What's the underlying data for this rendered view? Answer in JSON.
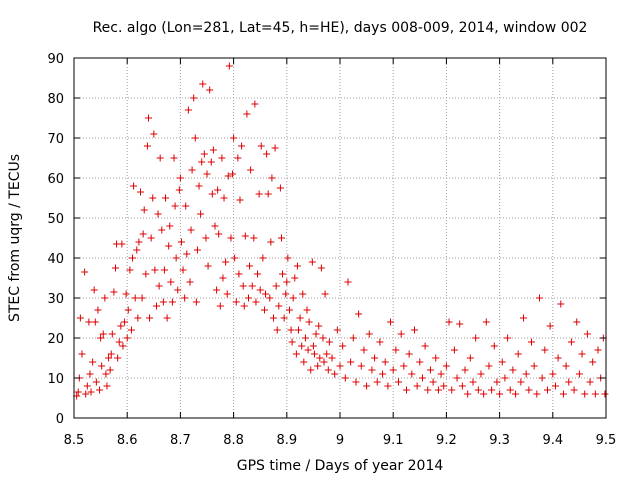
{
  "chart_data": {
    "type": "scatter",
    "title": "Rec. algo (Lon=281, Lat=45, h=HE), days 008-009, 2014, window 002",
    "xlabel": "GPS time / Days of year 2014",
    "ylabel": "STEC from uqrg / TECUs",
    "xlim": [
      8.5,
      9.5
    ],
    "ylim": [
      0,
      90
    ],
    "xticks": [
      "8.5",
      "8.6",
      "8.7",
      "8.8",
      "8.9",
      "9",
      "9.1",
      "9.2",
      "9.3",
      "9.4",
      "9.5"
    ],
    "yticks": [
      "0",
      "10",
      "20",
      "30",
      "40",
      "50",
      "60",
      "70",
      "80",
      "90"
    ],
    "grid": true,
    "marker": "+",
    "color": "#dd0000",
    "points": [
      [
        8.505,
        5.5
      ],
      [
        8.508,
        6.5
      ],
      [
        8.51,
        10
      ],
      [
        8.512,
        25
      ],
      [
        8.515,
        16
      ],
      [
        8.52,
        36.5
      ],
      [
        8.522,
        6
      ],
      [
        8.525,
        8
      ],
      [
        8.528,
        24
      ],
      [
        8.53,
        11
      ],
      [
        8.532,
        6.5
      ],
      [
        8.535,
        14
      ],
      [
        8.538,
        32
      ],
      [
        8.54,
        24
      ],
      [
        8.542,
        9
      ],
      [
        8.545,
        27
      ],
      [
        8.548,
        7
      ],
      [
        8.55,
        20
      ],
      [
        8.552,
        13
      ],
      [
        8.555,
        21
      ],
      [
        8.558,
        30
      ],
      [
        8.56,
        11
      ],
      [
        8.562,
        8
      ],
      [
        8.565,
        15
      ],
      [
        8.568,
        12
      ],
      [
        8.57,
        16
      ],
      [
        8.572,
        21
      ],
      [
        8.575,
        31.5
      ],
      [
        8.578,
        37.5
      ],
      [
        8.58,
        43.5
      ],
      [
        8.582,
        15
      ],
      [
        8.585,
        19
      ],
      [
        8.588,
        23
      ],
      [
        8.59,
        43.5
      ],
      [
        8.592,
        18
      ],
      [
        8.595,
        24
      ],
      [
        8.598,
        31
      ],
      [
        8.6,
        20
      ],
      [
        8.602,
        27
      ],
      [
        8.605,
        37
      ],
      [
        8.608,
        22
      ],
      [
        8.61,
        40
      ],
      [
        8.612,
        58
      ],
      [
        8.615,
        30
      ],
      [
        8.618,
        42
      ],
      [
        8.62,
        25
      ],
      [
        8.622,
        44
      ],
      [
        8.625,
        56.5
      ],
      [
        8.628,
        30
      ],
      [
        8.63,
        46
      ],
      [
        8.632,
        52
      ],
      [
        8.635,
        36
      ],
      [
        8.638,
        68
      ],
      [
        8.64,
        75
      ],
      [
        8.642,
        25
      ],
      [
        8.645,
        45
      ],
      [
        8.648,
        55
      ],
      [
        8.65,
        71
      ],
      [
        8.652,
        37
      ],
      [
        8.655,
        28
      ],
      [
        8.658,
        51
      ],
      [
        8.66,
        33
      ],
      [
        8.662,
        65
      ],
      [
        8.665,
        47
      ],
      [
        8.668,
        29
      ],
      [
        8.67,
        37
      ],
      [
        8.672,
        55
      ],
      [
        8.675,
        25
      ],
      [
        8.678,
        43
      ],
      [
        8.68,
        48
      ],
      [
        8.682,
        34
      ],
      [
        8.685,
        29
      ],
      [
        8.688,
        65
      ],
      [
        8.69,
        53
      ],
      [
        8.692,
        40
      ],
      [
        8.695,
        32
      ],
      [
        8.698,
        57
      ],
      [
        8.7,
        60
      ],
      [
        8.702,
        44
      ],
      [
        8.705,
        37
      ],
      [
        8.708,
        30
      ],
      [
        8.71,
        53
      ],
      [
        8.712,
        41
      ],
      [
        8.715,
        77
      ],
      [
        8.718,
        34
      ],
      [
        8.72,
        47
      ],
      [
        8.722,
        62
      ],
      [
        8.725,
        80
      ],
      [
        8.728,
        70
      ],
      [
        8.73,
        29
      ],
      [
        8.732,
        42
      ],
      [
        8.735,
        58
      ],
      [
        8.738,
        51
      ],
      [
        8.74,
        64
      ],
      [
        8.742,
        83.5
      ],
      [
        8.745,
        66
      ],
      [
        8.748,
        45
      ],
      [
        8.75,
        61
      ],
      [
        8.752,
        38
      ],
      [
        8.755,
        82
      ],
      [
        8.758,
        64
      ],
      [
        8.76,
        56
      ],
      [
        8.762,
        67
      ],
      [
        8.765,
        48
      ],
      [
        8.768,
        32
      ],
      [
        8.77,
        57
      ],
      [
        8.772,
        46
      ],
      [
        8.775,
        28
      ],
      [
        8.778,
        65
      ],
      [
        8.78,
        35
      ],
      [
        8.782,
        55
      ],
      [
        8.785,
        39
      ],
      [
        8.788,
        31
      ],
      [
        8.79,
        60.5
      ],
      [
        8.792,
        88
      ],
      [
        8.795,
        45
      ],
      [
        8.798,
        61
      ],
      [
        8.8,
        70
      ],
      [
        8.802,
        40
      ],
      [
        8.805,
        29
      ],
      [
        8.808,
        65
      ],
      [
        8.81,
        36
      ],
      [
        8.812,
        54.5
      ],
      [
        8.815,
        68
      ],
      [
        8.818,
        33
      ],
      [
        8.82,
        28
      ],
      [
        8.822,
        45.5
      ],
      [
        8.825,
        76
      ],
      [
        8.828,
        30
      ],
      [
        8.83,
        38
      ],
      [
        8.832,
        62
      ],
      [
        8.835,
        33
      ],
      [
        8.838,
        45
      ],
      [
        8.84,
        78.5
      ],
      [
        8.842,
        29
      ],
      [
        8.845,
        36
      ],
      [
        8.848,
        56
      ],
      [
        8.85,
        32
      ],
      [
        8.852,
        68
      ],
      [
        8.855,
        40
      ],
      [
        8.858,
        27
      ],
      [
        8.86,
        31
      ],
      [
        8.862,
        66
      ],
      [
        8.865,
        56
      ],
      [
        8.868,
        30
      ],
      [
        8.87,
        44
      ],
      [
        8.872,
        60
      ],
      [
        8.875,
        25
      ],
      [
        8.878,
        67.5
      ],
      [
        8.88,
        33
      ],
      [
        8.882,
        22
      ],
      [
        8.885,
        28
      ],
      [
        8.888,
        57.5
      ],
      [
        8.89,
        45
      ],
      [
        8.892,
        36
      ],
      [
        8.895,
        25
      ],
      [
        8.898,
        31
      ],
      [
        8.9,
        34
      ],
      [
        8.902,
        40
      ],
      [
        8.905,
        27
      ],
      [
        8.908,
        22
      ],
      [
        8.91,
        19
      ],
      [
        8.912,
        30
      ],
      [
        8.915,
        35
      ],
      [
        8.918,
        16
      ],
      [
        8.92,
        38
      ],
      [
        8.922,
        22
      ],
      [
        8.925,
        25
      ],
      [
        8.928,
        18
      ],
      [
        8.93,
        31
      ],
      [
        8.932,
        14
      ],
      [
        8.935,
        20
      ],
      [
        8.938,
        27
      ],
      [
        8.94,
        17
      ],
      [
        8.942,
        24
      ],
      [
        8.945,
        12
      ],
      [
        8.948,
        39
      ],
      [
        8.95,
        18
      ],
      [
        8.952,
        16
      ],
      [
        8.955,
        21
      ],
      [
        8.958,
        13
      ],
      [
        8.96,
        23
      ],
      [
        8.962,
        15
      ],
      [
        8.965,
        37.5
      ],
      [
        8.968,
        20
      ],
      [
        8.97,
        14
      ],
      [
        8.972,
        31
      ],
      [
        8.975,
        16
      ],
      [
        8.978,
        12
      ],
      [
        8.98,
        19
      ],
      [
        8.985,
        15
      ],
      [
        8.99,
        11
      ],
      [
        8.995,
        22
      ],
      [
        9.0,
        13
      ],
      [
        9.005,
        18
      ],
      [
        9.01,
        10
      ],
      [
        9.015,
        34
      ],
      [
        9.02,
        14
      ],
      [
        9.025,
        20
      ],
      [
        9.03,
        9
      ],
      [
        9.035,
        26
      ],
      [
        9.04,
        13
      ],
      [
        9.045,
        17
      ],
      [
        9.05,
        8
      ],
      [
        9.055,
        21
      ],
      [
        9.06,
        12
      ],
      [
        9.065,
        15
      ],
      [
        9.07,
        9
      ],
      [
        9.075,
        19
      ],
      [
        9.08,
        11
      ],
      [
        9.085,
        14
      ],
      [
        9.09,
        8
      ],
      [
        9.095,
        24
      ],
      [
        9.1,
        12
      ],
      [
        9.105,
        17
      ],
      [
        9.11,
        9
      ],
      [
        9.115,
        21
      ],
      [
        9.12,
        13
      ],
      [
        9.125,
        7
      ],
      [
        9.13,
        16
      ],
      [
        9.135,
        11
      ],
      [
        9.14,
        22
      ],
      [
        9.145,
        8
      ],
      [
        9.15,
        14
      ],
      [
        9.155,
        10
      ],
      [
        9.16,
        18
      ],
      [
        9.165,
        7
      ],
      [
        9.17,
        12
      ],
      [
        9.175,
        9
      ],
      [
        9.18,
        15
      ],
      [
        9.185,
        7
      ],
      [
        9.19,
        11
      ],
      [
        9.195,
        8
      ],
      [
        9.2,
        13
      ],
      [
        9.205,
        24
      ],
      [
        9.21,
        7
      ],
      [
        9.215,
        17
      ],
      [
        9.22,
        10
      ],
      [
        9.225,
        23.5
      ],
      [
        9.23,
        8
      ],
      [
        9.235,
        12
      ],
      [
        9.24,
        6
      ],
      [
        9.245,
        15
      ],
      [
        9.25,
        9
      ],
      [
        9.255,
        20
      ],
      [
        9.26,
        7
      ],
      [
        9.265,
        11
      ],
      [
        9.27,
        6
      ],
      [
        9.275,
        24
      ],
      [
        9.28,
        13
      ],
      [
        9.285,
        7
      ],
      [
        9.29,
        18
      ],
      [
        9.295,
        9
      ],
      [
        9.3,
        6
      ],
      [
        9.305,
        14
      ],
      [
        9.31,
        10
      ],
      [
        9.315,
        20
      ],
      [
        9.32,
        7
      ],
      [
        9.325,
        12
      ],
      [
        9.33,
        6
      ],
      [
        9.335,
        16
      ],
      [
        9.34,
        9
      ],
      [
        9.345,
        25
      ],
      [
        9.35,
        11
      ],
      [
        9.355,
        7
      ],
      [
        9.36,
        19
      ],
      [
        9.365,
        13
      ],
      [
        9.37,
        6
      ],
      [
        9.375,
        30
      ],
      [
        9.38,
        10
      ],
      [
        9.385,
        17
      ],
      [
        9.39,
        7
      ],
      [
        9.395,
        23
      ],
      [
        9.4,
        11
      ],
      [
        9.405,
        8
      ],
      [
        9.41,
        15
      ],
      [
        9.415,
        28.5
      ],
      [
        9.42,
        6
      ],
      [
        9.425,
        13
      ],
      [
        9.43,
        9
      ],
      [
        9.435,
        19
      ],
      [
        9.44,
        7
      ],
      [
        9.445,
        24
      ],
      [
        9.45,
        11
      ],
      [
        9.455,
        16
      ],
      [
        9.46,
        6
      ],
      [
        9.465,
        21
      ],
      [
        9.47,
        9
      ],
      [
        9.475,
        14
      ],
      [
        9.48,
        6
      ],
      [
        9.485,
        17
      ],
      [
        9.49,
        10
      ],
      [
        9.495,
        20
      ],
      [
        9.498,
        6
      ]
    ]
  }
}
